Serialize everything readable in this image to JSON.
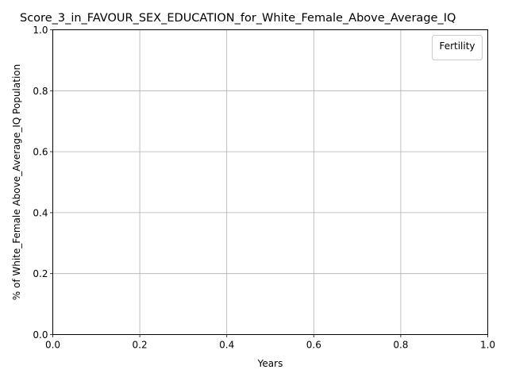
{
  "chart_data": {
    "type": "line",
    "title": "Score_3_in_FAVOUR_SEX_EDUCATION_for_White_Female_Above_Average_IQ",
    "xlabel": "Years",
    "ylabel": "% of White_Female Above_Average_IQ Population",
    "xlim": [
      0.0,
      1.0
    ],
    "ylim": [
      0.0,
      1.0
    ],
    "x_ticks": [
      "0.0",
      "0.2",
      "0.4",
      "0.6",
      "0.8",
      "1.0"
    ],
    "y_ticks": [
      "0.0",
      "0.2",
      "0.4",
      "0.6",
      "0.8",
      "1.0"
    ],
    "grid": true,
    "legend": {
      "title": "Fertility",
      "placement": "top-right",
      "entries": []
    },
    "series": []
  }
}
